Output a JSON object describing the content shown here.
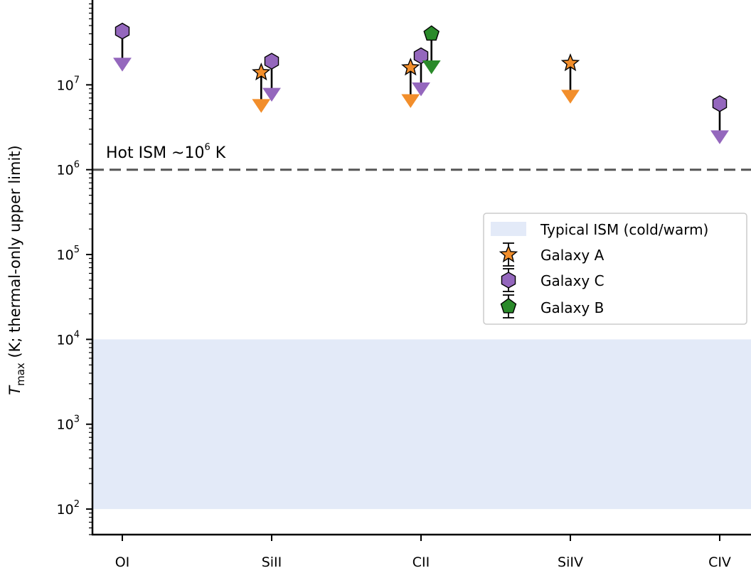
{
  "chart_data": {
    "type": "scatter",
    "xlabel": {
      "symbol": "T",
      "subscript": "max",
      "rest": " (K; thermal-only upper limit)"
    },
    "categories": [
      "OI",
      "SiII",
      "CII",
      "SiIV",
      "CIV"
    ],
    "y_scale": "log",
    "ylim": [
      50,
      100000000
    ],
    "y_ticks": [
      {
        "value": 100,
        "base": "10",
        "exp": "2"
      },
      {
        "value": 1000,
        "base": "10",
        "exp": "3"
      },
      {
        "value": 10000,
        "base": "10",
        "exp": "4"
      },
      {
        "value": 100000,
        "base": "10",
        "exp": "5"
      },
      {
        "value": 1000000,
        "base": "10",
        "exp": "6"
      },
      {
        "value": 10000000,
        "base": "10",
        "exp": "7"
      }
    ],
    "reference_line": {
      "value": 1000000,
      "label_prefix": "Hot ISM ~10",
      "label_exp": "6",
      "label_suffix": " K",
      "color": "#555555"
    },
    "band": {
      "from": 100,
      "to": 10000,
      "label": "Typical ISM (cold/warm)",
      "color": "#e3eaf8"
    },
    "series": [
      {
        "name": "Galaxy A",
        "marker": "star",
        "color": "#f28e2b",
        "points": [
          {
            "category": "SiII",
            "offset": -0.07,
            "value": 14000000
          },
          {
            "category": "CII",
            "offset": -0.07,
            "value": 16000000
          },
          {
            "category": "SiIV",
            "offset": 0.0,
            "value": 18000000
          }
        ]
      },
      {
        "name": "Galaxy C",
        "marker": "hexagon",
        "color": "#9467bd",
        "points": [
          {
            "category": "OI",
            "offset": 0.0,
            "value": 43000000
          },
          {
            "category": "SiII",
            "offset": 0.0,
            "value": 19000000
          },
          {
            "category": "CII",
            "offset": 0.0,
            "value": 22000000
          },
          {
            "category": "CIV",
            "offset": 0.0,
            "value": 6000000
          }
        ]
      },
      {
        "name": "Galaxy B",
        "marker": "pentagon",
        "color": "#2a8a2a",
        "points": [
          {
            "category": "CII",
            "offset": 0.07,
            "value": 40000000
          }
        ]
      }
    ],
    "legend": {
      "placement": "right",
      "entries": [
        "Typical ISM (cold/warm)",
        "Galaxy A",
        "Galaxy C",
        "Galaxy B"
      ]
    },
    "grid": false
  }
}
